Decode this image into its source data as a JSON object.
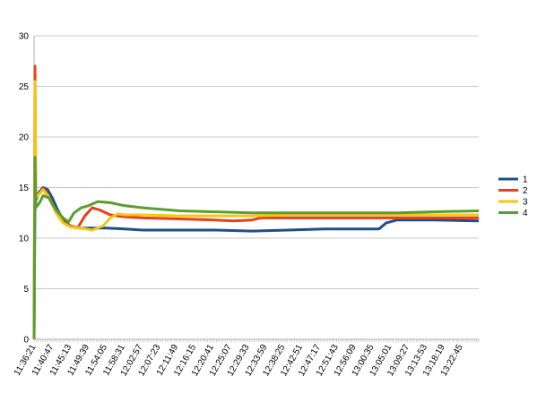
{
  "chart_data": {
    "type": "line",
    "ylim": [
      0,
      30
    ],
    "y_ticks": [
      0,
      5,
      10,
      15,
      20,
      25,
      30
    ],
    "grid": true,
    "legend": "right",
    "x_tick_labels": [
      "11:36:21",
      "11:40:47",
      "11:45:13",
      "11:49:39",
      "11:54:05",
      "11:58:31",
      "12:02:57",
      "12:07:23",
      "12:11:49",
      "12:16:15",
      "12:20:41",
      "12:25:07",
      "12:29:33",
      "12:33:59",
      "12:38:25",
      "12:42:51",
      "12:47:17",
      "12:51:43",
      "12:56:09",
      "13:00:35",
      "13:05:01",
      "13:09:27",
      "13:13:53",
      "13:18:19",
      "13:22:45"
    ],
    "x_range": [
      0,
      24.5
    ],
    "series": [
      {
        "name": "1",
        "color": "#1f4e8c",
        "points": [
          [
            0,
            0
          ],
          [
            0.05,
            13.5
          ],
          [
            0.25,
            14.5
          ],
          [
            0.5,
            15
          ],
          [
            0.75,
            14.8
          ],
          [
            1,
            14
          ],
          [
            1.3,
            12.8
          ],
          [
            1.6,
            11.8
          ],
          [
            2,
            11.2
          ],
          [
            2.5,
            11
          ],
          [
            3,
            11
          ],
          [
            4,
            11
          ],
          [
            5,
            10.9
          ],
          [
            6,
            10.8
          ],
          [
            8,
            10.8
          ],
          [
            10,
            10.8
          ],
          [
            12,
            10.7
          ],
          [
            14,
            10.8
          ],
          [
            16,
            10.9
          ],
          [
            18,
            10.9
          ],
          [
            19,
            10.9
          ],
          [
            19.4,
            11.5
          ],
          [
            20,
            11.8
          ],
          [
            22,
            11.8
          ],
          [
            24.5,
            11.7
          ]
        ]
      },
      {
        "name": "2",
        "color": "#e8401c",
        "points": [
          [
            0,
            0
          ],
          [
            0.05,
            27
          ],
          [
            0.1,
            14
          ],
          [
            0.3,
            14.5
          ],
          [
            0.5,
            14.9
          ],
          [
            0.8,
            14.2
          ],
          [
            1.2,
            12.6
          ],
          [
            1.6,
            11.6
          ],
          [
            2,
            11.2
          ],
          [
            2.4,
            11
          ],
          [
            2.8,
            12.2
          ],
          [
            3.2,
            13
          ],
          [
            3.6,
            12.8
          ],
          [
            4.2,
            12.3
          ],
          [
            5,
            12.1
          ],
          [
            6,
            12
          ],
          [
            8,
            11.9
          ],
          [
            10,
            11.8
          ],
          [
            11,
            11.7
          ],
          [
            12,
            11.8
          ],
          [
            12.5,
            12
          ],
          [
            14,
            12
          ],
          [
            16,
            12
          ],
          [
            18,
            12
          ],
          [
            20,
            12
          ],
          [
            22,
            12
          ],
          [
            24.5,
            12
          ]
        ]
      },
      {
        "name": "3",
        "color": "#f5c518",
        "points": [
          [
            0,
            0
          ],
          [
            0.05,
            25.5
          ],
          [
            0.1,
            14
          ],
          [
            0.3,
            14.4
          ],
          [
            0.5,
            14.8
          ],
          [
            0.8,
            14.1
          ],
          [
            1.2,
            12.5
          ],
          [
            1.6,
            11.5
          ],
          [
            2,
            11.1
          ],
          [
            2.6,
            11
          ],
          [
            3.2,
            10.8
          ],
          [
            3.8,
            11.2
          ],
          [
            4.2,
            12
          ],
          [
            4.6,
            12.4
          ],
          [
            5,
            12.3
          ],
          [
            6,
            12.3
          ],
          [
            8,
            12.2
          ],
          [
            10,
            12.2
          ],
          [
            12,
            12.2
          ],
          [
            14,
            12.3
          ],
          [
            16,
            12.3
          ],
          [
            18,
            12.3
          ],
          [
            20,
            12.3
          ],
          [
            22,
            12.3
          ],
          [
            24.5,
            12.3
          ]
        ]
      },
      {
        "name": "4",
        "color": "#5a9e2f",
        "points": [
          [
            0,
            0
          ],
          [
            0.05,
            18
          ],
          [
            0.1,
            13
          ],
          [
            0.3,
            13.5
          ],
          [
            0.5,
            14.2
          ],
          [
            0.8,
            14
          ],
          [
            1.2,
            12.8
          ],
          [
            1.6,
            12
          ],
          [
            1.9,
            11.6
          ],
          [
            2.2,
            12.5
          ],
          [
            2.6,
            13
          ],
          [
            3,
            13.2
          ],
          [
            3.5,
            13.6
          ],
          [
            4.2,
            13.5
          ],
          [
            5,
            13.2
          ],
          [
            6,
            13
          ],
          [
            8,
            12.7
          ],
          [
            10,
            12.6
          ],
          [
            12,
            12.5
          ],
          [
            14,
            12.5
          ],
          [
            16,
            12.5
          ],
          [
            18,
            12.5
          ],
          [
            20,
            12.5
          ],
          [
            22,
            12.6
          ],
          [
            24.5,
            12.7
          ]
        ]
      }
    ]
  }
}
